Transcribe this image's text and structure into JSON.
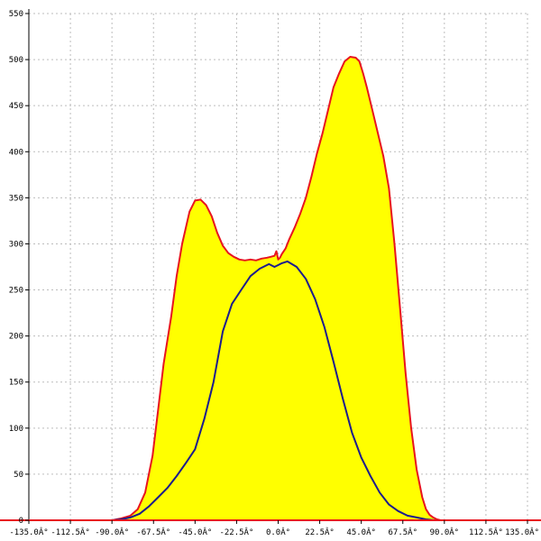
{
  "chart_data": {
    "type": "line",
    "title": "",
    "xlabel": "",
    "ylabel": "",
    "xlim": [
      -135,
      135
    ],
    "ylim": [
      0,
      550
    ],
    "grid": true,
    "x_ticks": [
      -135,
      -112.5,
      -90,
      -67.5,
      -45,
      -22.5,
      0,
      22.5,
      45,
      67.5,
      90,
      112.5,
      135
    ],
    "x_tick_labels": [
      "-135.0Â°",
      "-112.5Â°",
      "-90.0Â°",
      "-67.5Â°",
      "-45.0Â°",
      "-22.5Â°",
      "0.0Â°",
      "22.5Â°",
      "45.0Â°",
      "67.5Â°",
      "90.0Â°",
      "112.5Â°",
      "135.0Â°"
    ],
    "y_ticks": [
      0,
      50,
      100,
      150,
      200,
      250,
      300,
      350,
      400,
      450,
      500,
      550
    ],
    "y_tick_labels": [
      "0",
      "50",
      "100",
      "150",
      "200",
      "250",
      "300",
      "350",
      "400",
      "450",
      "500",
      "550"
    ],
    "series": [
      {
        "name": "",
        "color": "#e8141e",
        "fill": "#ffff00",
        "x": [
          -90,
          -85,
          -80,
          -76,
          -72,
          -68,
          -65,
          -62,
          -58,
          -55,
          -52,
          -48,
          -45,
          -42,
          -39,
          -36,
          -33,
          -30,
          -27,
          -24,
          -21,
          -18,
          -15,
          -12,
          -9,
          -6,
          -4,
          -2,
          -1,
          0,
          1,
          2,
          4,
          6,
          9,
          12,
          15,
          18,
          21,
          24,
          27,
          30,
          33,
          36,
          39,
          42,
          44,
          46,
          48,
          51,
          54,
          57,
          60,
          63,
          66,
          69,
          72,
          75,
          78,
          80,
          82,
          84,
          86,
          88,
          90
        ],
        "y": [
          0,
          2,
          5,
          12,
          30,
          70,
          120,
          170,
          220,
          265,
          300,
          335,
          347,
          348,
          342,
          330,
          312,
          298,
          290,
          286,
          283,
          282,
          283,
          282,
          284,
          285,
          286,
          287,
          292,
          283,
          285,
          289,
          295,
          305,
          318,
          333,
          350,
          373,
          398,
          420,
          445,
          470,
          485,
          498,
          503,
          502,
          498,
          485,
          470,
          445,
          420,
          395,
          360,
          300,
          230,
          160,
          100,
          55,
          25,
          12,
          6,
          3,
          1,
          0,
          0
        ]
      },
      {
        "name": "",
        "color": "#1c1c8c",
        "fill": "none",
        "x": [
          -90,
          -85,
          -80,
          -75,
          -70,
          -65,
          -60,
          -55,
          -50,
          -45,
          -40,
          -35,
          -30,
          -25,
          -20,
          -15,
          -10,
          -5,
          -2,
          0,
          2,
          5,
          10,
          15,
          20,
          25,
          30,
          35,
          40,
          45,
          50,
          55,
          60,
          65,
          70,
          75,
          80,
          85,
          90
        ],
        "y": [
          0,
          1,
          3,
          7,
          15,
          25,
          35,
          48,
          62,
          77,
          110,
          150,
          205,
          235,
          250,
          265,
          273,
          278,
          275,
          277,
          279,
          281,
          275,
          262,
          240,
          210,
          172,
          132,
          95,
          68,
          48,
          30,
          17,
          10,
          5,
          3,
          1,
          0,
          0
        ]
      }
    ]
  }
}
